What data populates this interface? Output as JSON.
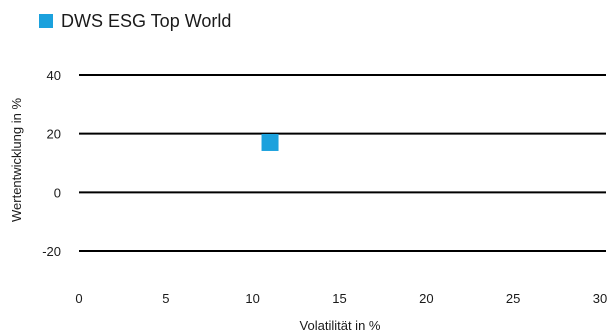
{
  "chart_data": {
    "type": "scatter",
    "series": [
      {
        "name": "DWS ESG Top World",
        "color": "#1ba1dd",
        "points": [
          {
            "x": 11.0,
            "y": 17.0
          }
        ]
      }
    ],
    "xlabel": "Volatilität in %",
    "ylabel": "Wertentwicklung in %",
    "xlim": [
      0,
      30
    ],
    "ylim": [
      -20,
      40
    ],
    "xticks": [
      0,
      5,
      10,
      15,
      20,
      25,
      30
    ],
    "yticks": [
      -20,
      0,
      20,
      40
    ],
    "xtick_labels": [
      "0",
      "5",
      "10",
      "15",
      "20",
      "25",
      "30"
    ],
    "ytick_labels": [
      "-20",
      "0",
      "20",
      "40"
    ],
    "grid": "horizontal",
    "legend_position": "top-left",
    "gridline_color": "#000000"
  }
}
